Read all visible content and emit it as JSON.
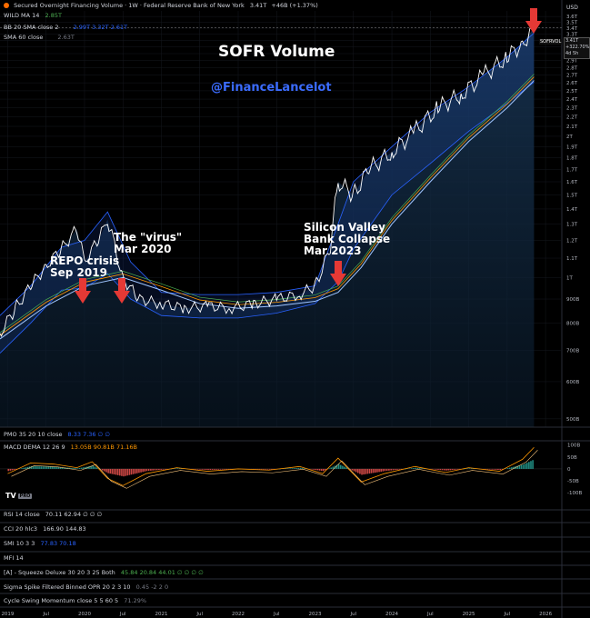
{
  "header": {
    "title": "Secured Overnight Financing Volume · 1W · Federal Reserve Bank of New York",
    "value": "3.41T",
    "change": "+46B (+1.37%)",
    "indicators": [
      {
        "label": "WILD MA 14",
        "value": "2.85T",
        "value_color": "#4caf50"
      },
      {
        "label": "BB 20 SMA close 2",
        "value": "2.99T  3.32T  2.61T",
        "value_color": "#2962ff"
      },
      {
        "label": "SMA 60 close",
        "value": "2.63T",
        "value_color": "#d1d4dc"
      }
    ]
  },
  "overlay": {
    "title": "SOFR Volume",
    "handle": "@FinanceLancelot",
    "annotations": [
      {
        "line1": "REPO crisis",
        "line2": "Sep 2019"
      },
      {
        "line1": "The \"virus\"",
        "line2": "Mar 2020"
      },
      {
        "line1": "Silicon Valley",
        "line2": "Bank Collapse",
        "line3": "Mar 2023"
      }
    ]
  },
  "price_panel": {
    "currency": "USD",
    "series_tag": "SOFRVOL",
    "last_value": "3.41T",
    "last_change": "+322.70%",
    "last_time": "4d 5h"
  },
  "subpanels": [
    {
      "label": "PMO 35 20 10 close",
      "values": "8.33  7.36  ∅  ∅"
    },
    {
      "label": "MACD DEMA 12 26 9",
      "values": "13.05B  90.81B  71.16B"
    },
    {
      "label": "RSI 14 close",
      "values": "70.11  62.94  ∅  ∅  ∅"
    },
    {
      "label": "CCI 20 hlc3",
      "values": "166.90  144.83"
    },
    {
      "label": "SMI 10 3 3",
      "values": "77.83  70.18"
    },
    {
      "label": "MFI 14",
      "values": ""
    },
    {
      "label": "[A] - Squeeze Deluxe 30 20 3 25 Both",
      "values": "45.84  20.84  44.01  ∅  ∅  ∅  ∅"
    },
    {
      "label": "Sigma Spike Filtered Binned OPR 20 2 3 10",
      "values": "0.45  -2  2  0"
    },
    {
      "label": "Cycle Swing Momentum close 5 5 60 5",
      "values": "71.29%"
    }
  ],
  "brand": {
    "logo": "TV",
    "badge": "PRO"
  },
  "colors": {
    "price": "#ffffff",
    "band": "#2962ff",
    "wild_ma": "#4caf50",
    "sma": "#ff9800",
    "sma60": "#9fc5ff",
    "arrow": "#e53935",
    "macd_pos": "#26a69a",
    "macd_neg": "#ef5350"
  },
  "chart_data": {
    "type": "line",
    "title": "Secured Overnight Financing Volume",
    "x_ticks": [
      "2019",
      "Jul",
      "2020",
      "Jul",
      "2021",
      "Jul",
      "2022",
      "Jul",
      "2023",
      "Jul",
      "2024",
      "Jul",
      "2025",
      "Jul",
      "2026"
    ],
    "y_ticks": [
      "500B",
      "600B",
      "700B",
      "800B",
      "900B",
      "1T",
      "1.1T",
      "1.2T",
      "1.3T",
      "1.4T",
      "1.5T",
      "1.6T",
      "1.7T",
      "1.8T",
      "1.9T",
      "2T",
      "2.1T",
      "2.2T",
      "2.3T",
      "2.4T",
      "2.5T",
      "2.6T",
      "2.7T",
      "2.8T",
      "2.9T",
      "3T",
      "3.1T",
      "3.2T",
      "3.3T",
      "3.4T",
      "3.5T",
      "3.6T"
    ],
    "y_scale": "log",
    "ylim": [
      480,
      3700
    ],
    "y_unit": "B",
    "series": [
      {
        "name": "SOFRVOL",
        "x": [
          2018.9,
          2019.1,
          2019.3,
          2019.5,
          2019.7,
          2019.9,
          2020.0,
          2020.2,
          2020.3,
          2020.5,
          2020.7,
          2021.0,
          2021.3,
          2021.6,
          2021.9,
          2022.2,
          2022.5,
          2022.8,
          2023.0,
          2023.2,
          2023.3,
          2023.5,
          2023.7,
          2024.0,
          2024.3,
          2024.6,
          2024.9,
          2025.2,
          2025.5,
          2025.7,
          2025.85
        ],
        "values": [
          760,
          860,
          960,
          1060,
          1150,
          1270,
          1080,
          1220,
          1330,
          1000,
          900,
          880,
          860,
          870,
          860,
          880,
          900,
          920,
          960,
          1150,
          1600,
          1500,
          1700,
          1850,
          2050,
          2300,
          2450,
          2700,
          2950,
          3150,
          3410
        ]
      },
      {
        "name": "BB upper",
        "x": [
          2018.9,
          2019.3,
          2019.7,
          2020.0,
          2020.3,
          2020.6,
          2021.0,
          2021.5,
          2022.0,
          2022.5,
          2023.0,
          2023.3,
          2023.5,
          2024.0,
          2024.5,
          2025.0,
          2025.5,
          2025.85
        ],
        "values": [
          830,
          960,
          1160,
          1200,
          1380,
          1080,
          930,
          920,
          920,
          930,
          960,
          1300,
          1600,
          1900,
          2250,
          2550,
          2950,
          3320
        ]
      },
      {
        "name": "BB lower",
        "x": [
          2018.9,
          2019.3,
          2019.7,
          2020.0,
          2020.3,
          2020.6,
          2021.0,
          2021.5,
          2022.0,
          2022.5,
          2023.0,
          2023.3,
          2023.5,
          2024.0,
          2024.5,
          2025.0,
          2025.5,
          2025.85
        ],
        "values": [
          690,
          800,
          940,
          950,
          1020,
          900,
          830,
          820,
          820,
          840,
          880,
          980,
          1150,
          1500,
          1750,
          2050,
          2350,
          2610
        ]
      },
      {
        "name": "SMA 60",
        "x": [
          2018.9,
          2019.5,
          2020.0,
          2020.5,
          2021.0,
          2021.5,
          2022.0,
          2022.5,
          2023.0,
          2023.3,
          2023.6,
          2024.0,
          2024.5,
          2025.0,
          2025.5,
          2025.85
        ],
        "values": [
          740,
          870,
          960,
          1000,
          940,
          880,
          860,
          870,
          890,
          930,
          1050,
          1300,
          1600,
          1950,
          2300,
          2630
        ]
      }
    ],
    "macd": {
      "x": [
        2019.0,
        2019.3,
        2019.6,
        2019.9,
        2020.1,
        2020.3,
        2020.5,
        2020.8,
        2021.2,
        2021.6,
        2022.0,
        2022.4,
        2022.8,
        2023.1,
        2023.3,
        2023.6,
        2023.9,
        2024.3,
        2024.7,
        2025.0,
        2025.4,
        2025.7,
        2025.85
      ],
      "values": [
        -20,
        25,
        20,
        5,
        30,
        -40,
        -70,
        -20,
        5,
        -10,
        0,
        -5,
        10,
        -20,
        45,
        -55,
        -20,
        10,
        -15,
        5,
        -10,
        40,
        90
      ],
      "ylim": [
        -160,
        110
      ],
      "y_ticks": [
        "100B",
        "50B",
        "0",
        "-50B",
        "-100B"
      ]
    }
  }
}
